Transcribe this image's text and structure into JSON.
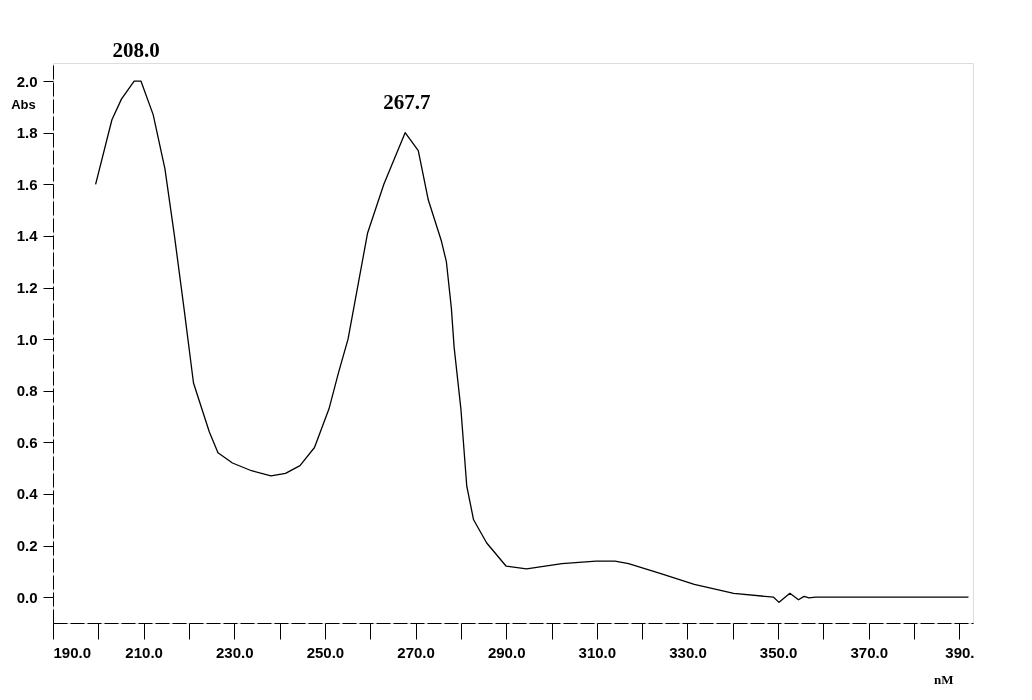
{
  "chart_data": {
    "type": "line",
    "xlabel": "nM",
    "ylabel": "Abs",
    "series": [
      {
        "color": "#000000",
        "x": [
          199.4,
          203.0,
          205.1,
          207.9,
          209.4,
          212.1,
          214.7,
          216.8,
          218.9,
          221.0,
          224.5,
          226.4,
          229.6,
          233.8,
          238.1,
          241.3,
          244.5,
          247.7,
          250.9,
          253.0,
          255.1,
          259.4,
          263.0,
          267.7,
          270.6,
          272.8,
          275.7,
          276.8,
          277.9,
          278.5,
          280.0,
          281.3,
          282.8,
          285.7,
          290.0,
          294.5,
          302.3,
          309.8,
          314.0,
          317.0,
          324.3,
          331.5,
          340.2,
          349.0,
          350.2,
          352.6,
          354.5,
          355.7,
          356.8,
          358.3,
          375.0,
          392.0
        ],
        "values": [
          1.6,
          1.85,
          1.93,
          2.0,
          2.0,
          1.87,
          1.66,
          1.4,
          1.12,
          0.83,
          0.64,
          0.56,
          0.52,
          0.49,
          0.47,
          0.48,
          0.51,
          0.58,
          0.73,
          0.87,
          1.0,
          1.41,
          1.6,
          1.8,
          1.73,
          1.54,
          1.38,
          1.3,
          1.12,
          0.97,
          0.73,
          0.43,
          0.3,
          0.21,
          0.12,
          0.11,
          0.13,
          0.14,
          0.14,
          0.13,
          0.09,
          0.05,
          0.015,
          0.0,
          -0.02,
          0.015,
          -0.01,
          0.003,
          -0.003,
          0.0,
          0.0,
          0.0
        ]
      }
    ],
    "xlim": [
      190,
      393
    ],
    "ylim": [
      -0.1,
      2.07
    ],
    "xticks": [
      {
        "value": 190,
        "label": "190.0"
      },
      {
        "value": 200,
        "label": null
      },
      {
        "value": 210,
        "label": "210.0"
      },
      {
        "value": 220,
        "label": null
      },
      {
        "value": 230,
        "label": "230.0"
      },
      {
        "value": 240,
        "label": null
      },
      {
        "value": 250,
        "label": "250.0"
      },
      {
        "value": 260,
        "label": null
      },
      {
        "value": 270,
        "label": "270.0"
      },
      {
        "value": 280,
        "label": null
      },
      {
        "value": 290,
        "label": "290.0"
      },
      {
        "value": 300,
        "label": null
      },
      {
        "value": 310,
        "label": "310.0"
      },
      {
        "value": 320,
        "label": null
      },
      {
        "value": 330,
        "label": "330.0"
      },
      {
        "value": 340,
        "label": null
      },
      {
        "value": 350,
        "label": "350.0"
      },
      {
        "value": 360,
        "label": null
      },
      {
        "value": 370,
        "label": "370.0"
      },
      {
        "value": 380,
        "label": null
      },
      {
        "value": 390,
        "label": "390."
      }
    ],
    "yticks": [
      {
        "value": 0,
        "label": "0.0"
      },
      {
        "value": 0.2,
        "label": "0.2"
      },
      {
        "value": 0.4,
        "label": "0.4"
      },
      {
        "value": 0.6,
        "label": "0.6"
      },
      {
        "value": 0.8,
        "label": "0.8"
      },
      {
        "value": 1.0,
        "label": "1.0"
      },
      {
        "value": 1.2,
        "label": "1.2"
      },
      {
        "value": 1.4,
        "label": "1.4"
      },
      {
        "value": 1.6,
        "label": "1.6"
      },
      {
        "value": 1.8,
        "label": "1.8"
      },
      {
        "value": 2.0,
        "label": "2.0"
      }
    ],
    "annotations": [
      {
        "text": "208.0",
        "x": 208.0,
        "y": 2.0
      },
      {
        "text": "267.7",
        "x": 267.7,
        "y": 1.8
      }
    ],
    "grid": false,
    "marker": "none",
    "line_style": "solid"
  }
}
